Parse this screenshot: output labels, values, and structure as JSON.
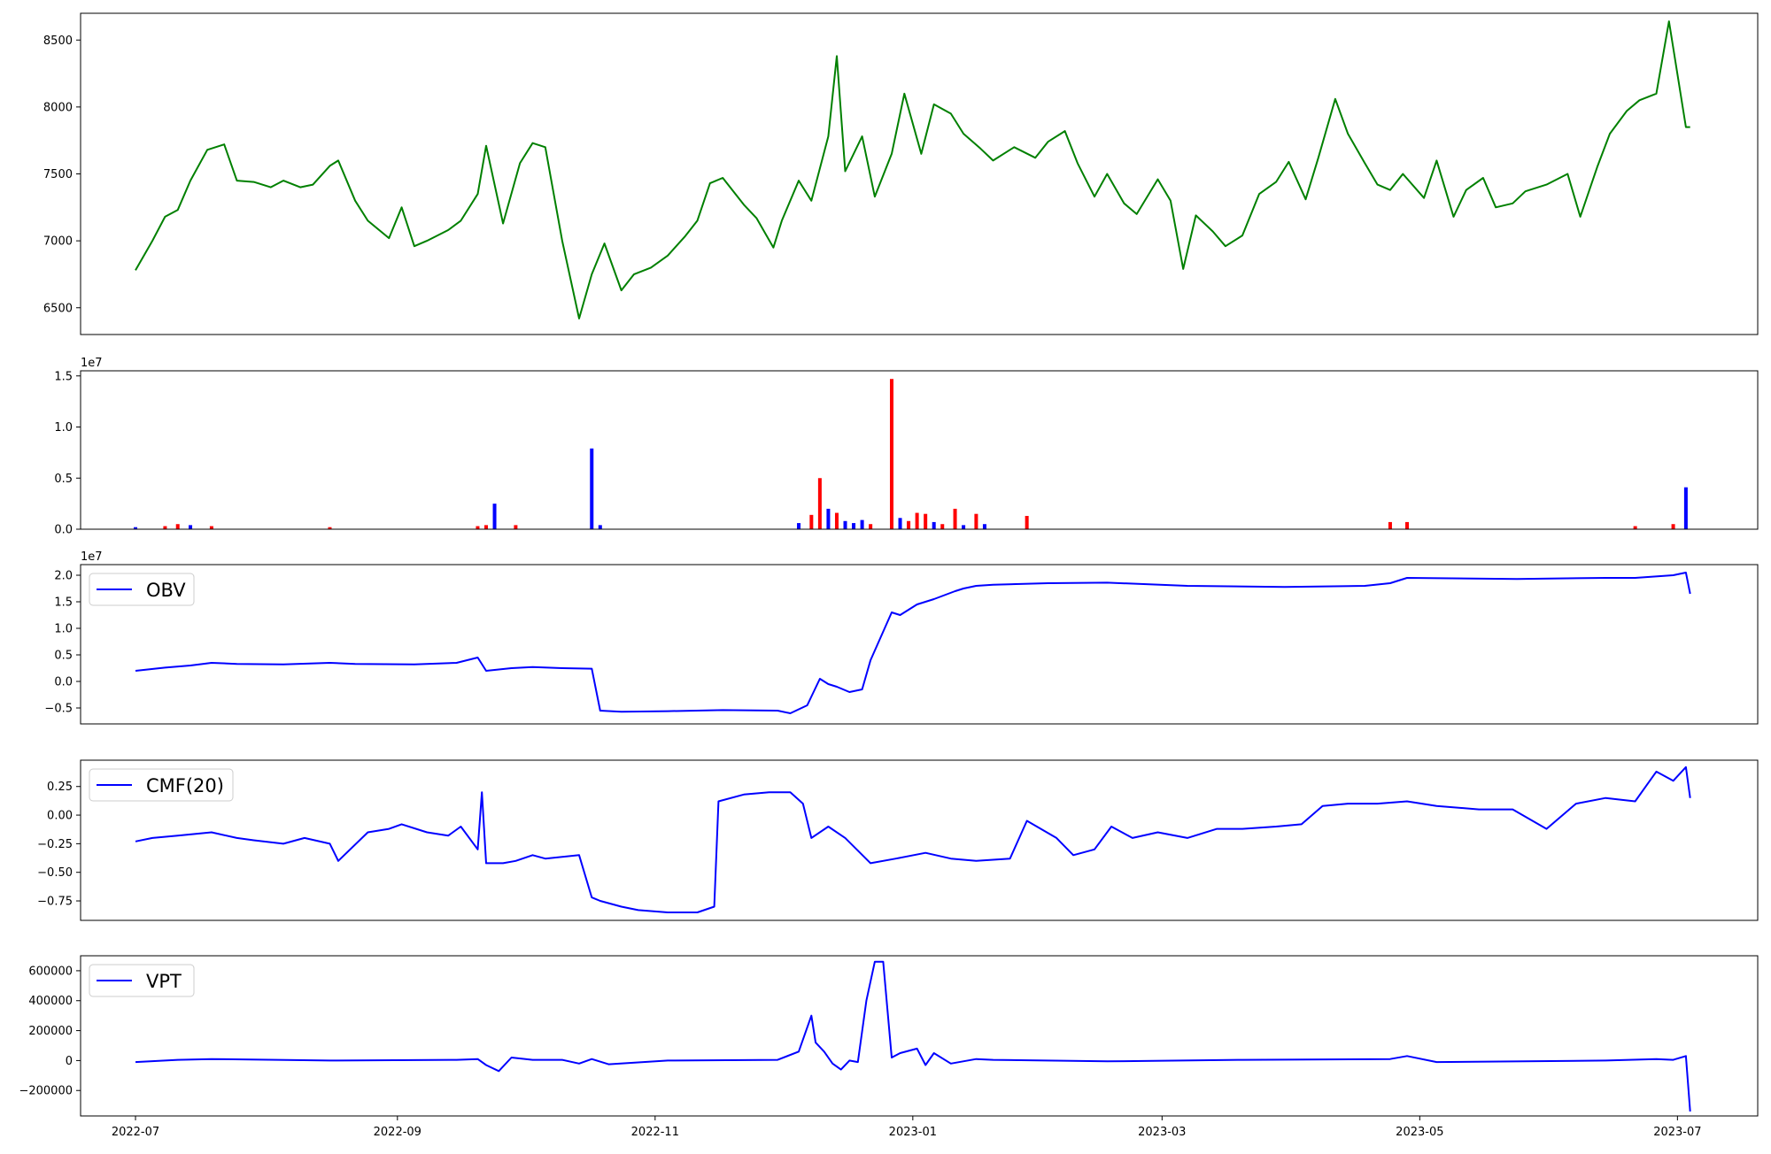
{
  "chart_data": [
    {
      "id": "price",
      "type": "line",
      "color": "#008000",
      "ylim": [
        6300,
        8700
      ],
      "yticks": [
        6500,
        7000,
        7500,
        8000,
        8500
      ],
      "ytick_labels": [
        "6500",
        "7000",
        "7500",
        "8000",
        "8500"
      ],
      "series": [
        {
          "x": [
            "2022-07-01",
            "2022-07-05",
            "2022-07-08",
            "2022-07-11",
            "2022-07-14",
            "2022-07-18",
            "2022-07-22",
            "2022-07-25",
            "2022-07-29",
            "2022-08-02",
            "2022-08-05",
            "2022-08-09",
            "2022-08-12",
            "2022-08-16",
            "2022-08-18",
            "2022-08-22",
            "2022-08-25",
            "2022-08-30",
            "2022-09-02",
            "2022-09-05",
            "2022-09-08",
            "2022-09-13",
            "2022-09-16",
            "2022-09-20",
            "2022-09-22",
            "2022-09-26",
            "2022-09-30",
            "2022-10-03",
            "2022-10-06",
            "2022-10-10",
            "2022-10-14",
            "2022-10-17",
            "2022-10-20",
            "2022-10-24",
            "2022-10-27",
            "2022-10-31",
            "2022-11-04",
            "2022-11-08",
            "2022-11-11",
            "2022-11-14",
            "2022-11-17",
            "2022-11-22",
            "2022-11-25",
            "2022-11-29",
            "2022-12-01",
            "2022-12-05",
            "2022-12-08",
            "2022-12-12",
            "2022-12-14",
            "2022-12-16",
            "2022-12-20",
            "2022-12-23",
            "2022-12-27",
            "2022-12-30",
            "2023-01-03",
            "2023-01-06",
            "2023-01-10",
            "2023-01-13",
            "2023-01-17",
            "2023-01-20",
            "2023-01-25",
            "2023-01-30",
            "2023-02-02",
            "2023-02-06",
            "2023-02-09",
            "2023-02-13",
            "2023-02-16",
            "2023-02-20",
            "2023-02-23",
            "2023-02-28",
            "2023-03-03",
            "2023-03-06",
            "2023-03-09",
            "2023-03-13",
            "2023-03-16",
            "2023-03-20",
            "2023-03-24",
            "2023-03-28",
            "2023-03-31",
            "2023-04-04",
            "2023-04-07",
            "2023-04-11",
            "2023-04-14",
            "2023-04-18",
            "2023-04-21",
            "2023-04-24",
            "2023-04-27",
            "2023-05-02",
            "2023-05-05",
            "2023-05-09",
            "2023-05-12",
            "2023-05-16",
            "2023-05-19",
            "2023-05-23",
            "2023-05-26",
            "2023-05-31",
            "2023-06-05",
            "2023-06-08",
            "2023-06-12",
            "2023-06-15",
            "2023-06-19",
            "2023-06-22",
            "2023-06-26",
            "2023-06-29",
            "2023-07-03",
            "2023-07-04"
          ],
          "y": [
            6780,
            7000,
            7180,
            7230,
            7450,
            7680,
            7720,
            7450,
            7440,
            7400,
            7450,
            7400,
            7420,
            7560,
            7600,
            7300,
            7150,
            7020,
            7250,
            6960,
            7000,
            7080,
            7150,
            7350,
            7710,
            7130,
            7580,
            7730,
            7700,
            7000,
            6420,
            6750,
            6980,
            6630,
            6750,
            6800,
            6890,
            7030,
            7150,
            7430,
            7470,
            7270,
            7170,
            6950,
            7150,
            7450,
            7300,
            7780,
            8380,
            7520,
            7780,
            7330,
            7650,
            8100,
            7650,
            8020,
            7950,
            7800,
            7690,
            7600,
            7700,
            7620,
            7740,
            7820,
            7580,
            7330,
            7500,
            7280,
            7200,
            7460,
            7300,
            6790,
            7190,
            7070,
            6960,
            7040,
            7350,
            7440,
            7590,
            7310,
            7620,
            8060,
            7800,
            7580,
            7420,
            7380,
            7500,
            7320,
            7600,
            7180,
            7380,
            7470,
            7250,
            7280,
            7370,
            7420,
            7500,
            7180,
            7550,
            7800,
            7970,
            8050,
            8100,
            8640,
            7850,
            7850
          ]
        }
      ]
    },
    {
      "id": "volume",
      "type": "bar",
      "scale_label": "1e7",
      "ylim": [
        0,
        1.55
      ],
      "yticks": [
        0.0,
        0.5,
        1.0,
        1.5
      ],
      "ytick_labels": [
        "0.0",
        "0.5",
        "1.0",
        "1.5"
      ],
      "colors": {
        "up": "#0000ff",
        "down": "#ff0000"
      },
      "bars": [
        {
          "x": "2022-07-01",
          "value": 0.02,
          "dir": "up"
        },
        {
          "x": "2022-07-08",
          "value": 0.03,
          "dir": "down"
        },
        {
          "x": "2022-07-11",
          "value": 0.05,
          "dir": "down"
        },
        {
          "x": "2022-07-14",
          "value": 0.04,
          "dir": "up"
        },
        {
          "x": "2022-07-19",
          "value": 0.03,
          "dir": "down"
        },
        {
          "x": "2022-08-16",
          "value": 0.02,
          "dir": "down"
        },
        {
          "x": "2022-09-20",
          "value": 0.03,
          "dir": "down"
        },
        {
          "x": "2022-09-22",
          "value": 0.04,
          "dir": "down"
        },
        {
          "x": "2022-09-24",
          "value": 0.25,
          "dir": "up"
        },
        {
          "x": "2022-09-29",
          "value": 0.04,
          "dir": "down"
        },
        {
          "x": "2022-10-17",
          "value": 0.79,
          "dir": "up"
        },
        {
          "x": "2022-10-19",
          "value": 0.04,
          "dir": "up"
        },
        {
          "x": "2022-12-05",
          "value": 0.06,
          "dir": "up"
        },
        {
          "x": "2022-12-08",
          "value": 0.14,
          "dir": "down"
        },
        {
          "x": "2022-12-10",
          "value": 0.5,
          "dir": "down"
        },
        {
          "x": "2022-12-12",
          "value": 0.2,
          "dir": "up"
        },
        {
          "x": "2022-12-14",
          "value": 0.16,
          "dir": "down"
        },
        {
          "x": "2022-12-16",
          "value": 0.08,
          "dir": "up"
        },
        {
          "x": "2022-12-18",
          "value": 0.06,
          "dir": "up"
        },
        {
          "x": "2022-12-20",
          "value": 0.09,
          "dir": "up"
        },
        {
          "x": "2022-12-22",
          "value": 0.05,
          "dir": "down"
        },
        {
          "x": "2022-12-27",
          "value": 1.47,
          "dir": "down"
        },
        {
          "x": "2022-12-29",
          "value": 0.11,
          "dir": "up"
        },
        {
          "x": "2022-12-31",
          "value": 0.08,
          "dir": "down"
        },
        {
          "x": "2023-01-02",
          "value": 0.16,
          "dir": "down"
        },
        {
          "x": "2023-01-04",
          "value": 0.15,
          "dir": "down"
        },
        {
          "x": "2023-01-06",
          "value": 0.07,
          "dir": "up"
        },
        {
          "x": "2023-01-08",
          "value": 0.05,
          "dir": "down"
        },
        {
          "x": "2023-01-11",
          "value": 0.2,
          "dir": "down"
        },
        {
          "x": "2023-01-13",
          "value": 0.04,
          "dir": "up"
        },
        {
          "x": "2023-01-16",
          "value": 0.15,
          "dir": "down"
        },
        {
          "x": "2023-01-18",
          "value": 0.05,
          "dir": "up"
        },
        {
          "x": "2023-01-28",
          "value": 0.13,
          "dir": "down"
        },
        {
          "x": "2023-04-24",
          "value": 0.07,
          "dir": "down"
        },
        {
          "x": "2023-04-28",
          "value": 0.07,
          "dir": "down"
        },
        {
          "x": "2023-06-21",
          "value": 0.03,
          "dir": "down"
        },
        {
          "x": "2023-06-30",
          "value": 0.05,
          "dir": "down"
        },
        {
          "x": "2023-07-03",
          "value": 0.41,
          "dir": "up"
        }
      ]
    },
    {
      "id": "obv",
      "type": "line",
      "scale_label": "1e7",
      "color": "#0000ff",
      "legend": "OBV",
      "ylim": [
        -0.8,
        2.2
      ],
      "yticks": [
        -0.5,
        0.0,
        0.5,
        1.0,
        1.5,
        2.0
      ],
      "ytick_labels": [
        "−0.5",
        "0.0",
        "0.5",
        "1.0",
        "1.5",
        "2.0"
      ],
      "series": [
        {
          "x": [
            "2022-07-01",
            "2022-07-08",
            "2022-07-14",
            "2022-07-19",
            "2022-07-25",
            "2022-08-05",
            "2022-08-16",
            "2022-08-22",
            "2022-09-05",
            "2022-09-15",
            "2022-09-20",
            "2022-09-22",
            "2022-09-28",
            "2022-10-03",
            "2022-10-10",
            "2022-10-17",
            "2022-10-19",
            "2022-10-24",
            "2022-11-04",
            "2022-11-17",
            "2022-11-30",
            "2022-12-03",
            "2022-12-07",
            "2022-12-10",
            "2022-12-12",
            "2022-12-14",
            "2022-12-17",
            "2022-12-20",
            "2022-12-22",
            "2022-12-27",
            "2022-12-29",
            "2023-01-02",
            "2023-01-06",
            "2023-01-11",
            "2023-01-13",
            "2023-01-16",
            "2023-01-20",
            "2023-02-02",
            "2023-02-16",
            "2023-03-07",
            "2023-03-30",
            "2023-04-18",
            "2023-04-24",
            "2023-04-28",
            "2023-05-24",
            "2023-06-14",
            "2023-06-21",
            "2023-06-30",
            "2023-07-03",
            "2023-07-04"
          ],
          "y": [
            0.2,
            0.26,
            0.3,
            0.35,
            0.33,
            0.32,
            0.35,
            0.33,
            0.32,
            0.35,
            0.45,
            0.2,
            0.25,
            0.27,
            0.25,
            0.24,
            -0.55,
            -0.57,
            -0.56,
            -0.54,
            -0.55,
            -0.6,
            -0.45,
            0.05,
            -0.05,
            -0.1,
            -0.2,
            -0.15,
            0.4,
            1.3,
            1.25,
            1.45,
            1.55,
            1.7,
            1.75,
            1.8,
            1.82,
            1.85,
            1.86,
            1.8,
            1.78,
            1.8,
            1.85,
            1.95,
            1.93,
            1.95,
            1.95,
            2.0,
            2.05,
            1.65
          ]
        }
      ]
    },
    {
      "id": "cmf",
      "type": "line",
      "color": "#0000ff",
      "legend": "CMF(20)",
      "ylim": [
        -0.92,
        0.48
      ],
      "yticks": [
        -0.75,
        -0.5,
        -0.25,
        0.0,
        0.25
      ],
      "ytick_labels": [
        "−0.75",
        "−0.50",
        "−0.25",
        "0.00",
        "0.25"
      ],
      "series": [
        {
          "x": [
            "2022-07-01",
            "2022-07-05",
            "2022-07-11",
            "2022-07-19",
            "2022-07-25",
            "2022-07-29",
            "2022-08-05",
            "2022-08-10",
            "2022-08-16",
            "2022-08-18",
            "2022-08-25",
            "2022-08-30",
            "2022-09-02",
            "2022-09-08",
            "2022-09-13",
            "2022-09-16",
            "2022-09-20",
            "2022-09-21",
            "2022-09-22",
            "2022-09-26",
            "2022-09-29",
            "2022-10-03",
            "2022-10-06",
            "2022-10-14",
            "2022-10-17",
            "2022-10-19",
            "2022-10-24",
            "2022-10-28",
            "2022-11-04",
            "2022-11-11",
            "2022-11-15",
            "2022-11-16",
            "2022-11-22",
            "2022-11-28",
            "2022-12-03",
            "2022-12-06",
            "2022-12-08",
            "2022-12-12",
            "2022-12-16",
            "2022-12-22",
            "2022-12-28",
            "2023-01-04",
            "2023-01-10",
            "2023-01-16",
            "2023-01-24",
            "2023-01-28",
            "2023-02-04",
            "2023-02-08",
            "2023-02-13",
            "2023-02-17",
            "2023-02-22",
            "2023-02-28",
            "2023-03-07",
            "2023-03-14",
            "2023-03-20",
            "2023-03-28",
            "2023-04-03",
            "2023-04-08",
            "2023-04-14",
            "2023-04-21",
            "2023-04-28",
            "2023-05-05",
            "2023-05-15",
            "2023-05-23",
            "2023-05-31",
            "2023-06-07",
            "2023-06-14",
            "2023-06-21",
            "2023-06-26",
            "2023-06-30",
            "2023-07-03",
            "2023-07-04"
          ],
          "y": [
            -0.23,
            -0.2,
            -0.18,
            -0.15,
            -0.2,
            -0.22,
            -0.25,
            -0.2,
            -0.25,
            -0.4,
            -0.15,
            -0.12,
            -0.08,
            -0.15,
            -0.18,
            -0.1,
            -0.3,
            0.2,
            -0.42,
            -0.42,
            -0.4,
            -0.35,
            -0.38,
            -0.35,
            -0.72,
            -0.75,
            -0.8,
            -0.83,
            -0.85,
            -0.85,
            -0.8,
            0.12,
            0.18,
            0.2,
            0.2,
            0.1,
            -0.2,
            -0.1,
            -0.2,
            -0.42,
            -0.38,
            -0.33,
            -0.38,
            -0.4,
            -0.38,
            -0.05,
            -0.2,
            -0.35,
            -0.3,
            -0.1,
            -0.2,
            -0.15,
            -0.2,
            -0.12,
            -0.12,
            -0.1,
            -0.08,
            0.08,
            0.1,
            0.1,
            0.12,
            0.08,
            0.05,
            0.05,
            -0.12,
            0.1,
            0.15,
            0.12,
            0.38,
            0.3,
            0.42,
            0.15
          ]
        }
      ]
    },
    {
      "id": "vpt",
      "type": "line",
      "color": "#0000ff",
      "legend": "VPT",
      "ylim": [
        -370000,
        700000
      ],
      "yticks": [
        -200000,
        0,
        200000,
        400000,
        600000
      ],
      "ytick_labels": [
        "−200000",
        "0",
        "200000",
        "400000",
        "600000"
      ],
      "series": [
        {
          "x": [
            "2022-07-01",
            "2022-07-11",
            "2022-07-19",
            "2022-08-16",
            "2022-09-15",
            "2022-09-20",
            "2022-09-22",
            "2022-09-25",
            "2022-09-28",
            "2022-10-03",
            "2022-10-10",
            "2022-10-14",
            "2022-10-17",
            "2022-10-21",
            "2022-11-04",
            "2022-11-30",
            "2022-12-05",
            "2022-12-08",
            "2022-12-09",
            "2022-12-11",
            "2022-12-13",
            "2022-12-15",
            "2022-12-17",
            "2022-12-19",
            "2022-12-21",
            "2022-12-23",
            "2022-12-25",
            "2022-12-27",
            "2022-12-29",
            "2023-01-02",
            "2023-01-04",
            "2023-01-06",
            "2023-01-10",
            "2023-01-16",
            "2023-01-20",
            "2023-02-16",
            "2023-03-20",
            "2023-04-24",
            "2023-04-28",
            "2023-05-05",
            "2023-06-14",
            "2023-06-26",
            "2023-06-30",
            "2023-07-03",
            "2023-07-04"
          ],
          "y": [
            -10000,
            5000,
            10000,
            0,
            5000,
            10000,
            -30000,
            -70000,
            20000,
            5000,
            5000,
            -20000,
            10000,
            -25000,
            0,
            5000,
            60000,
            300000,
            120000,
            60000,
            -20000,
            -60000,
            0,
            -10000,
            400000,
            660000,
            660000,
            20000,
            50000,
            80000,
            -30000,
            50000,
            -20000,
            10000,
            5000,
            -5000,
            5000,
            10000,
            30000,
            -10000,
            0,
            10000,
            5000,
            30000,
            -340000
          ]
        }
      ]
    }
  ],
  "x_axis": {
    "range": [
      "2022-06-18",
      "2023-07-20"
    ],
    "ticks": [
      "2022-07-01",
      "2022-09-01",
      "2022-11-01",
      "2023-01-01",
      "2023-03-01",
      "2023-05-01",
      "2023-07-01"
    ],
    "tick_labels": [
      "2022-07",
      "2022-09",
      "2022-11",
      "2023-01",
      "2023-03",
      "2023-05",
      "2023-07"
    ]
  }
}
